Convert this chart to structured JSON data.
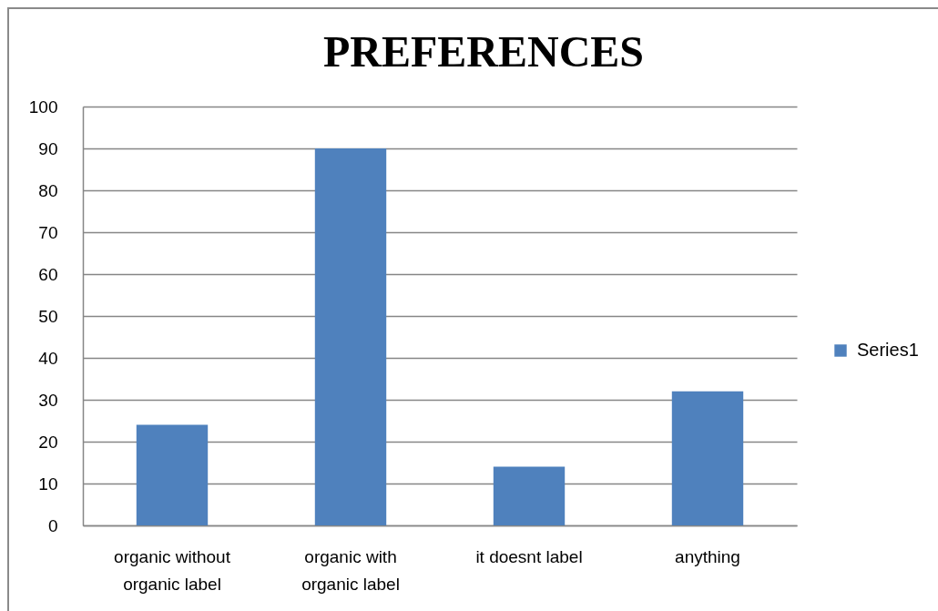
{
  "chart_data": {
    "type": "bar",
    "title": "PREFERENCES",
    "categories": [
      "organic without organic label",
      "organic with organic label",
      "it doesnt label",
      "anything"
    ],
    "series": [
      {
        "name": "Series1",
        "color": "#4f81bd",
        "values": [
          24,
          90,
          14,
          32
        ]
      }
    ],
    "ylim": [
      0,
      100
    ],
    "yticks": [
      0,
      10,
      20,
      30,
      40,
      50,
      60,
      70,
      80,
      90,
      100
    ],
    "grid": "y",
    "legend": "right"
  }
}
